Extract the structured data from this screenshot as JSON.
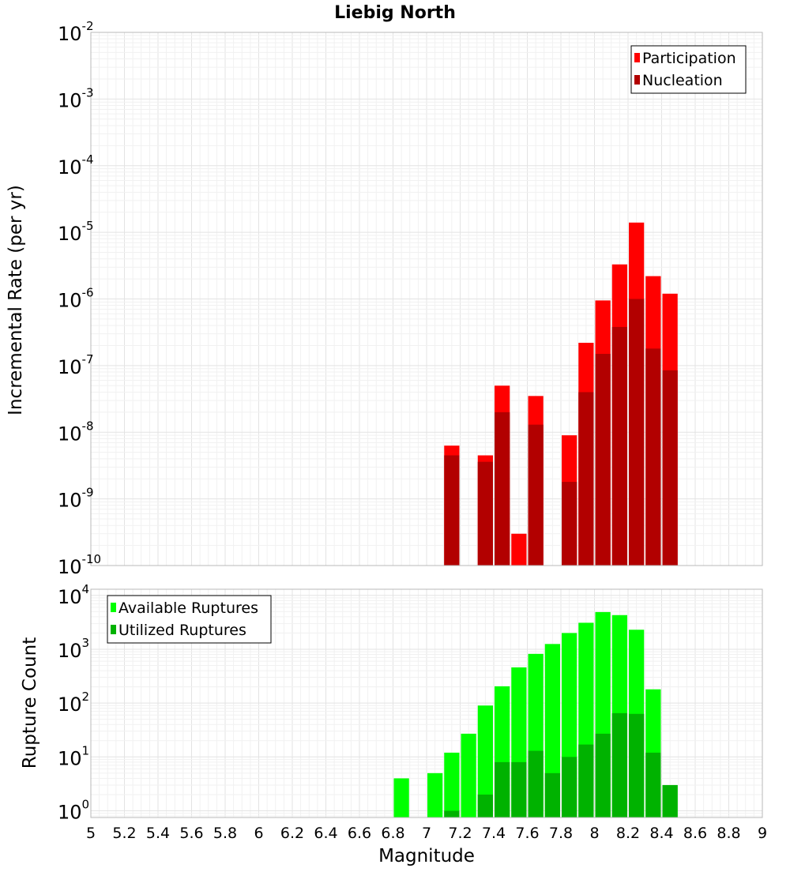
{
  "chart_data": [
    {
      "type": "bar",
      "title": "Liebig North",
      "ylabel": "Incremental Rate (per yr)",
      "xlabel": "",
      "yscale": "log",
      "ylim": [
        1e-10,
        0.01
      ],
      "xlim": [
        5,
        9
      ],
      "grid": true,
      "legend_position": "top-right",
      "y_ticks": [
        {
          "base": "10",
          "exp": "-10"
        },
        {
          "base": "10",
          "exp": "-9"
        },
        {
          "base": "10",
          "exp": "-8"
        },
        {
          "base": "10",
          "exp": "-7"
        },
        {
          "base": "10",
          "exp": "-6"
        },
        {
          "base": "10",
          "exp": "-5"
        },
        {
          "base": "10",
          "exp": "-4"
        },
        {
          "base": "10",
          "exp": "-3"
        },
        {
          "base": "10",
          "exp": "-2"
        }
      ],
      "bin_width": 0.1,
      "series": [
        {
          "name": "Participation",
          "color": "#ff0000",
          "points": [
            {
              "x": 7.15,
              "y": 6.3e-09
            },
            {
              "x": 7.35,
              "y": 4.5e-09
            },
            {
              "x": 7.45,
              "y": 5e-08
            },
            {
              "x": 7.55,
              "y": 3e-10
            },
            {
              "x": 7.65,
              "y": 3.5e-08
            },
            {
              "x": 7.85,
              "y": 9e-09
            },
            {
              "x": 7.95,
              "y": 2.2e-07
            },
            {
              "x": 8.05,
              "y": 9.5e-07
            },
            {
              "x": 8.15,
              "y": 3.3e-06
            },
            {
              "x": 8.25,
              "y": 1.4e-05
            },
            {
              "x": 8.35,
              "y": 2.2e-06
            },
            {
              "x": 8.45,
              "y": 1.2e-06
            }
          ]
        },
        {
          "name": "Nucleation",
          "color": "#b20000",
          "points": [
            {
              "x": 7.15,
              "y": 4.5e-09
            },
            {
              "x": 7.35,
              "y": 3.6e-09
            },
            {
              "x": 7.45,
              "y": 2e-08
            },
            {
              "x": 7.65,
              "y": 1.3e-08
            },
            {
              "x": 7.85,
              "y": 1.8e-09
            },
            {
              "x": 7.95,
              "y": 4e-08
            },
            {
              "x": 8.05,
              "y": 1.5e-07
            },
            {
              "x": 8.15,
              "y": 3.8e-07
            },
            {
              "x": 8.25,
              "y": 1e-06
            },
            {
              "x": 8.35,
              "y": 1.8e-07
            },
            {
              "x": 8.45,
              "y": 8.5e-08
            }
          ]
        }
      ]
    },
    {
      "type": "bar",
      "title": "",
      "ylabel": "Rupture Count",
      "xlabel": "Magnitude",
      "yscale": "log",
      "ylim": [
        0.75,
        13000
      ],
      "xlim": [
        5,
        9
      ],
      "grid": true,
      "legend_position": "top-left",
      "x_ticks": [
        "5",
        "5.2",
        "5.4",
        "5.6",
        "5.8",
        "6",
        "6.2",
        "6.4",
        "6.6",
        "6.8",
        "7",
        "7.2",
        "7.4",
        "7.6",
        "7.8",
        "8",
        "8.2",
        "8.4",
        "8.6",
        "8.8",
        "9"
      ],
      "y_ticks": [
        {
          "base": "10",
          "exp": "0"
        },
        {
          "base": "10",
          "exp": "1"
        },
        {
          "base": "10",
          "exp": "2"
        },
        {
          "base": "10",
          "exp": "3"
        },
        {
          "base": "10",
          "exp": "4"
        }
      ],
      "bin_width": 0.1,
      "series": [
        {
          "name": "Available Ruptures",
          "color": "#00ff00",
          "points": [
            {
              "x": 6.85,
              "y": 4
            },
            {
              "x": 7.05,
              "y": 5
            },
            {
              "x": 7.15,
              "y": 12
            },
            {
              "x": 7.25,
              "y": 27
            },
            {
              "x": 7.35,
              "y": 90
            },
            {
              "x": 7.45,
              "y": 205
            },
            {
              "x": 7.55,
              "y": 460
            },
            {
              "x": 7.65,
              "y": 820
            },
            {
              "x": 7.75,
              "y": 1250
            },
            {
              "x": 7.85,
              "y": 2000
            },
            {
              "x": 7.95,
              "y": 3100
            },
            {
              "x": 8.05,
              "y": 4900
            },
            {
              "x": 8.15,
              "y": 4300
            },
            {
              "x": 8.25,
              "y": 2300
            },
            {
              "x": 8.35,
              "y": 180
            },
            {
              "x": 8.45,
              "y": 3
            }
          ]
        },
        {
          "name": "Utilized Ruptures",
          "color": "#00b200",
          "points": [
            {
              "x": 7.15,
              "y": 1
            },
            {
              "x": 7.35,
              "y": 2
            },
            {
              "x": 7.45,
              "y": 8
            },
            {
              "x": 7.55,
              "y": 8
            },
            {
              "x": 7.65,
              "y": 13
            },
            {
              "x": 7.75,
              "y": 5
            },
            {
              "x": 7.85,
              "y": 10
            },
            {
              "x": 7.95,
              "y": 17
            },
            {
              "x": 8.05,
              "y": 27
            },
            {
              "x": 8.15,
              "y": 65
            },
            {
              "x": 8.25,
              "y": 63
            },
            {
              "x": 8.35,
              "y": 12
            },
            {
              "x": 8.45,
              "y": 3
            }
          ]
        }
      ]
    }
  ]
}
